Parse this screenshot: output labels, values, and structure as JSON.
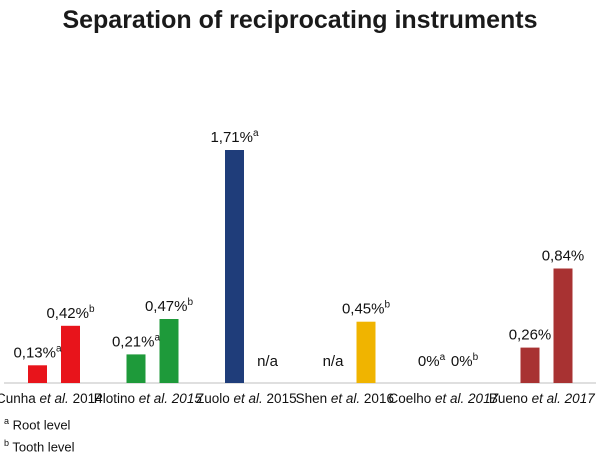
{
  "chart_data": {
    "type": "bar",
    "title": "Separation of reciprocating instruments",
    "ylim": [
      0,
      1.8
    ],
    "grid": false,
    "groups": [
      {
        "label": "Cunha et al. 2014",
        "label_parts": [
          {
            "text": "Cunha ",
            "italic": false
          },
          {
            "text": "et al.",
            "italic": true
          },
          {
            "text": " 2014",
            "italic": false
          }
        ],
        "bars": [
          {
            "value": 0.13,
            "text": "0,13%",
            "sup": "a",
            "color": "#e8141b"
          },
          {
            "value": 0.42,
            "text": "0,42%",
            "sup": "b",
            "color": "#e8141b"
          }
        ]
      },
      {
        "label": "Plotino et al. 2015",
        "label_parts": [
          {
            "text": "Plotino ",
            "italic": false
          },
          {
            "text": "et al. 2015",
            "italic": true
          }
        ],
        "bars": [
          {
            "value": 0.21,
            "text": "0,21%",
            "sup": "a",
            "color": "#1e9a3a"
          },
          {
            "value": 0.47,
            "text": "0,47%",
            "sup": "b",
            "color": "#1e9a3a"
          }
        ]
      },
      {
        "label": "Zuolo et al. 2015",
        "label_parts": [
          {
            "text": "Zuolo ",
            "italic": false
          },
          {
            "text": "et al.",
            "italic": true
          },
          {
            "text": " 2015",
            "italic": false
          }
        ],
        "bars": [
          {
            "value": 1.71,
            "text": "1,71%",
            "sup": "a",
            "color": "#1f3d7a"
          },
          {
            "value": null,
            "text": "n/a",
            "sup": "",
            "color": "#1f3d7a"
          }
        ]
      },
      {
        "label": "Shen et al. 2016",
        "label_parts": [
          {
            "text": "Shen ",
            "italic": false
          },
          {
            "text": "et al.",
            "italic": true
          },
          {
            "text": " 2016",
            "italic": false
          }
        ],
        "bars": [
          {
            "value": null,
            "text": "n/a",
            "sup": "",
            "color": "#f0b400"
          },
          {
            "value": 0.45,
            "text": "0,45%",
            "sup": "b",
            "color": "#f0b400"
          }
        ]
      },
      {
        "label": "Coelho et al. 2017",
        "label_parts": [
          {
            "text": "Coelho ",
            "italic": false
          },
          {
            "text": "et al. 2017",
            "italic": true
          }
        ],
        "bars": [
          {
            "value": 0,
            "text": "0%",
            "sup": "a",
            "color": "#8b2a2a"
          },
          {
            "value": 0,
            "text": "0%",
            "sup": "b",
            "color": "#8b2a2a"
          }
        ]
      },
      {
        "label": "Bueno et al. 2017",
        "label_parts": [
          {
            "text": "Bueno ",
            "italic": false
          },
          {
            "text": "et al. 2017",
            "italic": true
          }
        ],
        "bars": [
          {
            "value": 0.26,
            "text": "0,26%",
            "sup": "",
            "color": "#a83232"
          },
          {
            "value": 0.84,
            "text": "0,84%",
            "sup": "",
            "color": "#a83232"
          }
        ]
      }
    ],
    "footnotes": [
      {
        "sup": "a",
        "text": " Root level"
      },
      {
        "sup": "b",
        "text": " Tooth level"
      }
    ]
  }
}
